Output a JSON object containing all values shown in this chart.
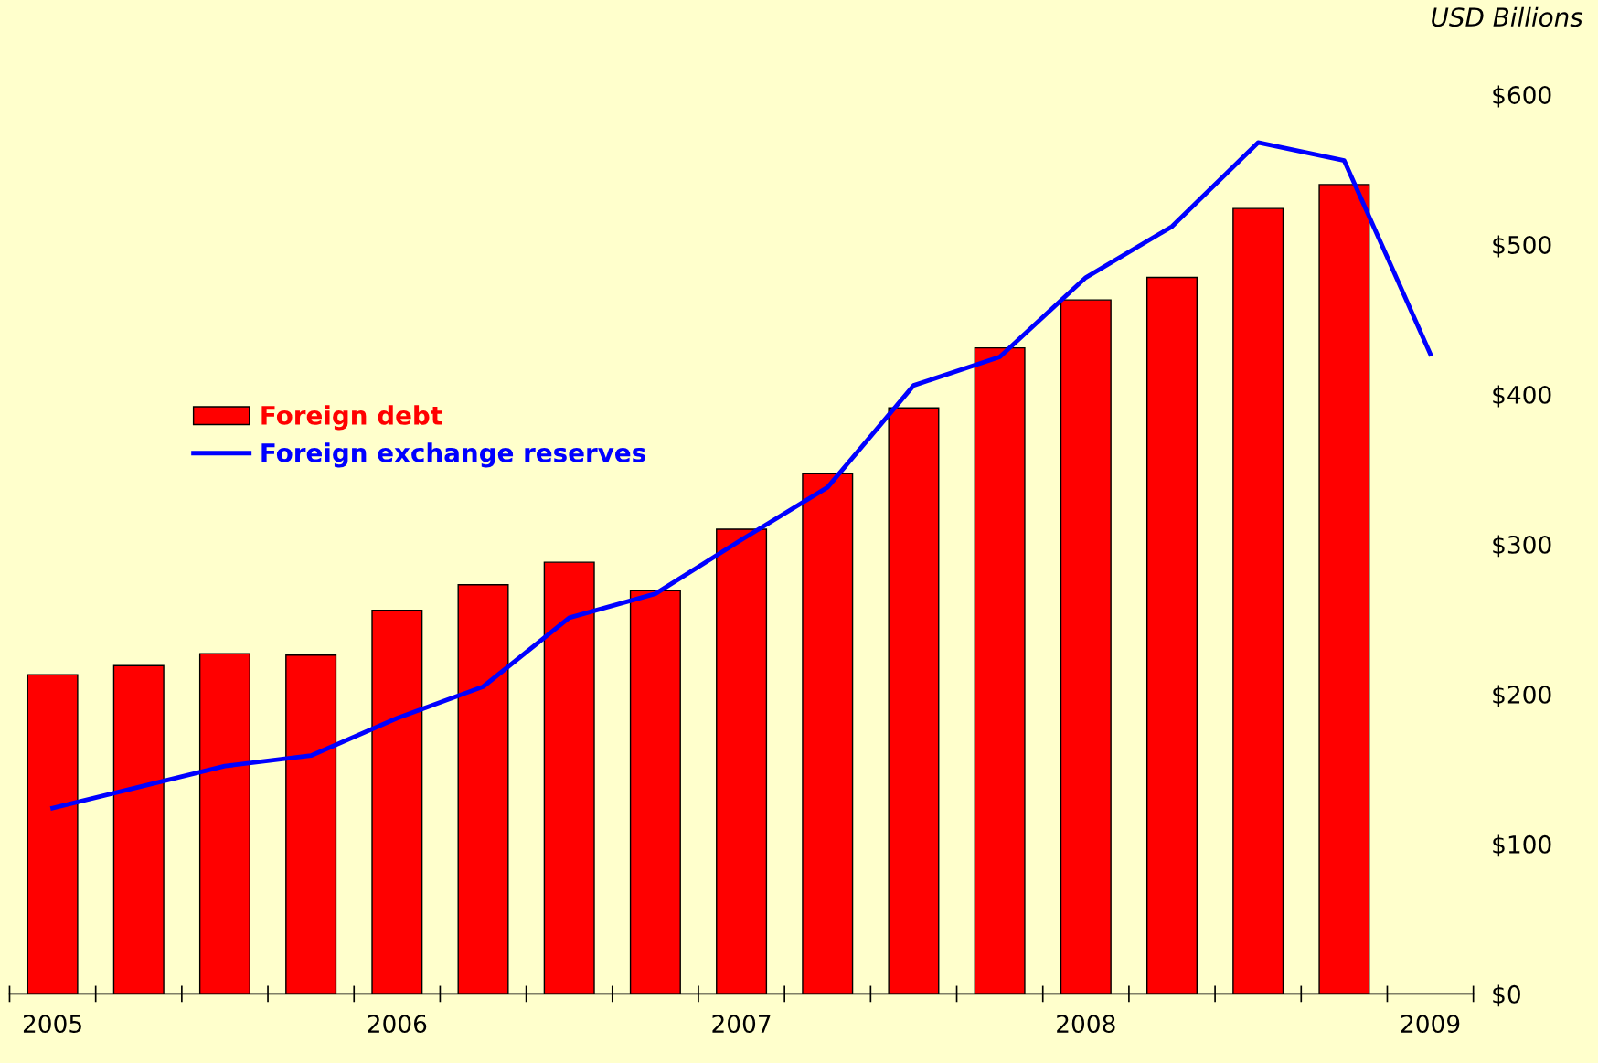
{
  "chart_data": {
    "type": "bar",
    "ylabel": "USD Billions",
    "categories": [
      "2005",
      null,
      null,
      null,
      "2006",
      null,
      null,
      null,
      "2007",
      null,
      null,
      null,
      "2008",
      null,
      null,
      null,
      "2009"
    ],
    "series": [
      {
        "name": "Foreign debt",
        "color": "#ff0000",
        "values": [
          213,
          219,
          227,
          226,
          256,
          273,
          288,
          269,
          310,
          347,
          391,
          431,
          463,
          478,
          524,
          540,
          null
        ]
      },
      {
        "name": "Foreign exchange reserves",
        "type": "line",
        "color": "#0000ff",
        "values": [
          124,
          138,
          152,
          159,
          184,
          205,
          251,
          267,
          303,
          338,
          406,
          425,
          478,
          512,
          568,
          556,
          427
        ]
      }
    ],
    "ylim": [
      0,
      600
    ],
    "yticks": [
      {
        "value": 0,
        "label": "$0"
      },
      {
        "value": 100,
        "label": "$100"
      },
      {
        "value": 200,
        "label": "$200"
      },
      {
        "value": 300,
        "label": "$300"
      },
      {
        "value": 400,
        "label": "$400"
      },
      {
        "value": 500,
        "label": "$500"
      },
      {
        "value": 600,
        "label": "$600"
      }
    ],
    "grid": false,
    "legend": "left",
    "marker": "none",
    "line_style": "solid"
  }
}
